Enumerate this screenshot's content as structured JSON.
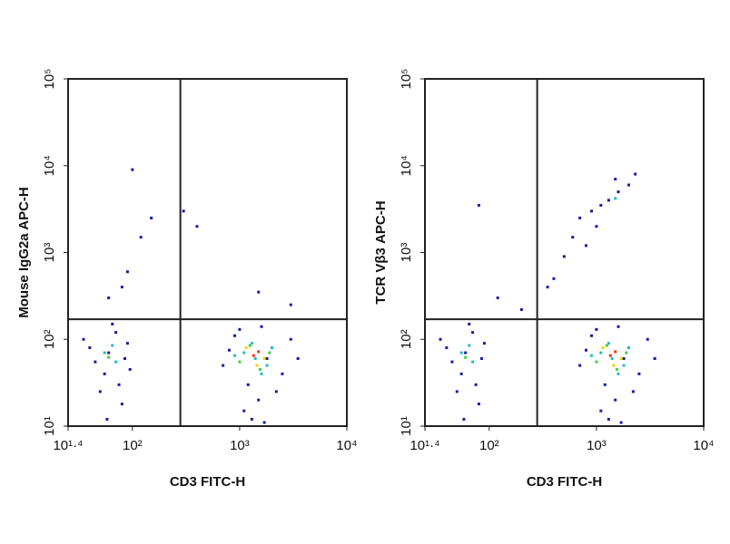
{
  "chart_data": [
    {
      "type": "scatter",
      "xlabel": "CD3 FITC-H",
      "ylabel": "Mouse IgG2a APC-H",
      "log_x": true,
      "log_y": true,
      "xlim": [
        25.12,
        10000
      ],
      "ylim": [
        10,
        100000
      ],
      "xticks": [
        {
          "value": 25.12,
          "label": "10¹·⁴"
        },
        {
          "value": 100,
          "label": "10²"
        },
        {
          "value": 1000,
          "label": "10³"
        },
        {
          "value": 10000,
          "label": "10⁴"
        }
      ],
      "yticks": [
        {
          "value": 10,
          "label": "10¹"
        },
        {
          "value": 100,
          "label": "10²"
        },
        {
          "value": 1000,
          "label": "10³"
        },
        {
          "value": 10000,
          "label": "10⁴"
        },
        {
          "value": 100000,
          "label": "10⁵"
        }
      ],
      "gates": {
        "x": 280,
        "y": 170
      },
      "series": [
        {
          "color": "#1a1aa8",
          "x": [
            40,
            55,
            70,
            85,
            50,
            65,
            90,
            45,
            75,
            60,
            35,
            80,
            58,
            95,
            700,
            900,
            1200,
            1600,
            2000,
            2500,
            3000,
            1100,
            1500,
            1800,
            800,
            2200,
            1300,
            3500,
            1000,
            1700,
            60,
            90,
            120,
            150,
            400,
            1500,
            3000,
            100,
            300,
            80
          ],
          "values": [
            80,
            40,
            120,
            60,
            25,
            150,
            90,
            55,
            30,
            70,
            100,
            18,
            12,
            45,
            50,
            110,
            30,
            140,
            80,
            40,
            100,
            15,
            20,
            60,
            75,
            25,
            12,
            60,
            130,
            11,
            300,
            600,
            1500,
            2500,
            2000,
            350,
            250,
            9000,
            3000,
            400
          ]
        },
        {
          "color": "#20c0c0",
          "x": [
            55,
            70,
            1100,
            1400,
            1800,
            1300,
            900,
            2000,
            1600,
            65
          ],
          "values": [
            70,
            55,
            70,
            60,
            50,
            90,
            65,
            80,
            40,
            85
          ]
        },
        {
          "color": "#40d040",
          "x": [
            60,
            1250,
            1550,
            1000,
            1900
          ],
          "values": [
            62,
            85,
            45,
            55,
            70
          ]
        },
        {
          "color": "#e8d800",
          "x": [
            1150,
            1700,
            1450
          ],
          "values": [
            80,
            60,
            50
          ]
        },
        {
          "color": "#ff3000",
          "x": [
            1350,
            1500
          ],
          "values": [
            65,
            72
          ]
        }
      ]
    },
    {
      "type": "scatter",
      "xlabel": "CD3 FITC-H",
      "ylabel": "TCR Vβ3 APC-H",
      "log_x": true,
      "log_y": true,
      "xlim": [
        25.12,
        10000
      ],
      "ylim": [
        10,
        100000
      ],
      "xticks": [
        {
          "value": 25.12,
          "label": "10¹·⁴"
        },
        {
          "value": 100,
          "label": "10²"
        },
        {
          "value": 1000,
          "label": "10³"
        },
        {
          "value": 10000,
          "label": "10⁴"
        }
      ],
      "yticks": [
        {
          "value": 10,
          "label": "10¹"
        },
        {
          "value": 100,
          "label": "10²"
        },
        {
          "value": 1000,
          "label": "10³"
        },
        {
          "value": 10000,
          "label": "10⁴"
        },
        {
          "value": 100000,
          "label": "10⁵"
        }
      ],
      "gates": {
        "x": 280,
        "y": 170
      },
      "series": [
        {
          "color": "#1a1aa8",
          "x": [
            40,
            55,
            70,
            85,
            50,
            65,
            90,
            45,
            75,
            60,
            35,
            80,
            58,
            700,
            900,
            1200,
            1600,
            2000,
            2500,
            3000,
            1100,
            1500,
            1800,
            800,
            2200,
            1300,
            3500,
            1000,
            1700,
            400,
            600,
            700,
            900,
            1100,
            1300,
            1600,
            2000,
            2300,
            1000,
            800,
            1500,
            500,
            350,
            120,
            200,
            80
          ],
          "values": [
            80,
            40,
            120,
            60,
            25,
            150,
            90,
            55,
            30,
            70,
            100,
            18,
            12,
            50,
            110,
            30,
            140,
            80,
            40,
            100,
            15,
            20,
            60,
            75,
            25,
            12,
            60,
            130,
            11,
            500,
            1500,
            2500,
            3000,
            3500,
            4000,
            5000,
            6000,
            8000,
            2000,
            1200,
            7000,
            900,
            400,
            300,
            220,
            3500
          ]
        },
        {
          "color": "#20c0c0",
          "x": [
            55,
            70,
            1100,
            1400,
            1800,
            1300,
            900,
            2000,
            1600,
            65,
            1500
          ],
          "values": [
            70,
            55,
            70,
            60,
            50,
            90,
            65,
            80,
            40,
            85,
            4200
          ]
        },
        {
          "color": "#40d040",
          "x": [
            60,
            1250,
            1550,
            1000,
            1900
          ],
          "values": [
            62,
            85,
            45,
            55,
            70
          ]
        },
        {
          "color": "#e8d800",
          "x": [
            1150,
            1700,
            1450
          ],
          "values": [
            80,
            60,
            50
          ]
        },
        {
          "color": "#ff3000",
          "x": [
            1350,
            1500
          ],
          "values": [
            65,
            72
          ]
        }
      ]
    }
  ]
}
